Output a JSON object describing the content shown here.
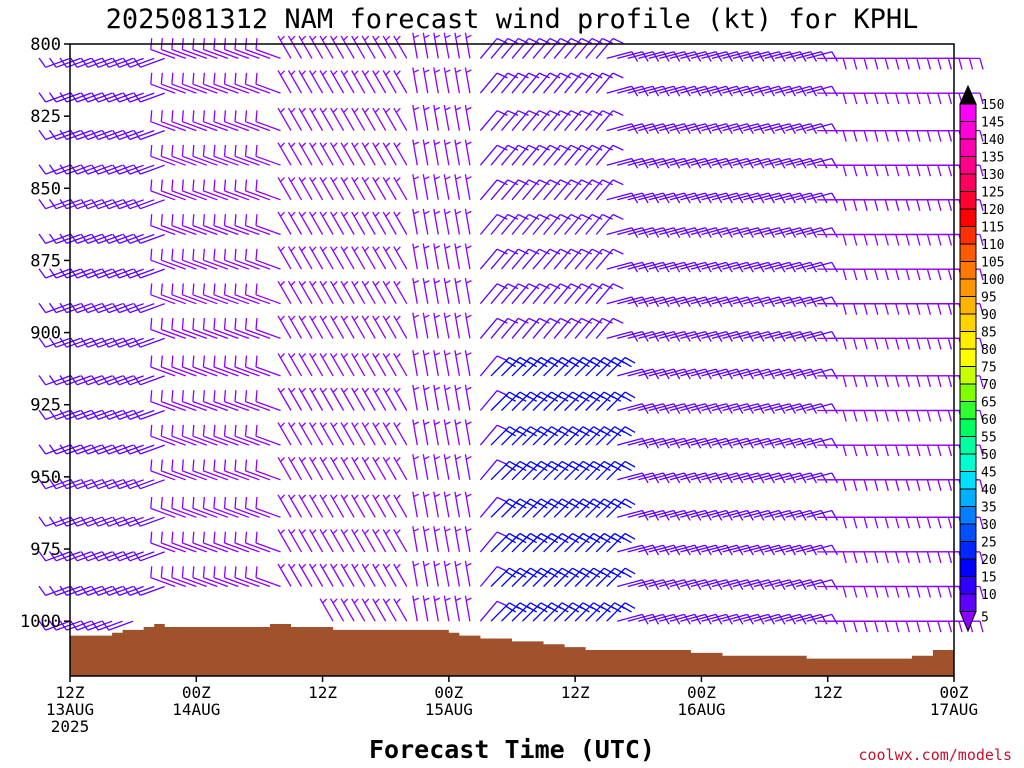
{
  "chart_data": {
    "type": "wind-barb-profile",
    "title": "2025081312 NAM forecast wind profile (kt) for KPHL",
    "xlabel": "Forecast Time (UTC)",
    "ylabel": "",
    "y_axis": {
      "reversed": true,
      "ylim": [
        800,
        1019
      ],
      "ticks": [
        "800",
        "825",
        "850",
        "875",
        "900",
        "925",
        "950",
        "975",
        "1000"
      ]
    },
    "x_axis": {
      "xlim_hours": [
        0,
        84
      ],
      "ticks": [
        {
          "hour": 0,
          "line1": "12Z",
          "line2": "13AUG",
          "line3": "2025"
        },
        {
          "hour": 12,
          "line1": "00Z",
          "line2": "14AUG",
          "line3": ""
        },
        {
          "hour": 24,
          "line1": "12Z",
          "line2": "",
          "line3": ""
        },
        {
          "hour": 36,
          "line1": "00Z",
          "line2": "15AUG",
          "line3": ""
        },
        {
          "hour": 48,
          "line1": "12Z",
          "line2": "",
          "line3": ""
        },
        {
          "hour": 60,
          "line1": "00Z",
          "line2": "16AUG",
          "line3": ""
        },
        {
          "hour": 72,
          "line1": "12Z",
          "line2": "",
          "line3": ""
        },
        {
          "hour": 84,
          "line1": "00Z",
          "line2": "17AUG",
          "line3": ""
        }
      ]
    },
    "surface_pressure": [
      {
        "hour": 0,
        "p": 1005
      },
      {
        "hour": 2,
        "p": 1005
      },
      {
        "hour": 4,
        "p": 1004
      },
      {
        "hour": 5,
        "p": 1003
      },
      {
        "hour": 7,
        "p": 1002
      },
      {
        "hour": 8,
        "p": 1001
      },
      {
        "hour": 9,
        "p": 1002
      },
      {
        "hour": 15,
        "p": 1002
      },
      {
        "hour": 19,
        "p": 1001
      },
      {
        "hour": 21,
        "p": 1002
      },
      {
        "hour": 25,
        "p": 1003
      },
      {
        "hour": 34,
        "p": 1003
      },
      {
        "hour": 36,
        "p": 1004
      },
      {
        "hour": 37,
        "p": 1005
      },
      {
        "hour": 39,
        "p": 1006
      },
      {
        "hour": 42,
        "p": 1007
      },
      {
        "hour": 45,
        "p": 1008
      },
      {
        "hour": 47,
        "p": 1009
      },
      {
        "hour": 49,
        "p": 1010
      },
      {
        "hour": 56,
        "p": 1010
      },
      {
        "hour": 59,
        "p": 1011
      },
      {
        "hour": 62,
        "p": 1012
      },
      {
        "hour": 68,
        "p": 1012
      },
      {
        "hour": 70,
        "p": 1013
      },
      {
        "hour": 78,
        "p": 1013
      },
      {
        "hour": 80,
        "p": 1012
      },
      {
        "hour": 82,
        "p": 1010
      },
      {
        "hour": 84,
        "p": 1009
      }
    ],
    "surface_color": "#a0522d",
    "wind_field": {
      "time_step_hours": 1,
      "pressure_levels": [
        805,
        817,
        830,
        842,
        854,
        866,
        878,
        890,
        902,
        915,
        927,
        939,
        951,
        964,
        976,
        988,
        1000,
        1012
      ],
      "regimes": [
        {
          "hours": [
            0,
            9
          ],
          "direction_deg": 250,
          "speed_kt": 10
        },
        {
          "hours": [
            10,
            20
          ],
          "direction_deg": 290,
          "speed_kt": 8
        },
        {
          "hours": [
            21,
            32
          ],
          "direction_deg": 330,
          "speed_kt": 7
        },
        {
          "hours": [
            33,
            38
          ],
          "direction_deg": 350,
          "speed_kt": 6
        },
        {
          "hours": [
            39,
            50
          ],
          "direction_deg": 40,
          "speed_kt": 12
        },
        {
          "hours": [
            51,
            70
          ],
          "direction_deg": 75,
          "speed_kt": 12
        },
        {
          "hours": [
            71,
            84
          ],
          "direction_deg": 90,
          "speed_kt": 9
        }
      ],
      "low_level_jet": {
        "hours": [
          40,
          51
        ],
        "pressure_range": [
          915,
          1000
        ],
        "direction_deg": 45,
        "speed_kt": 22
      }
    },
    "colorbar": {
      "labels": [
        "150",
        "145",
        "140",
        "135",
        "130",
        "125",
        "120",
        "115",
        "110",
        "105",
        "100",
        "95",
        "90",
        "85",
        "80",
        "75",
        "70",
        "65",
        "60",
        "55",
        "50",
        "45",
        "40",
        "35",
        "30",
        "25",
        "20",
        "15",
        "10",
        "5"
      ],
      "colors": [
        "#ff00ff",
        "#ff00d8",
        "#ff00b0",
        "#ff0088",
        "#ff0060",
        "#ff0030",
        "#ff0000",
        "#ff3000",
        "#ff5a00",
        "#ff7800",
        "#ff9600",
        "#ffb400",
        "#ffd200",
        "#ffee00",
        "#ffff00",
        "#c8ff00",
        "#80ff00",
        "#30ff30",
        "#00ff60",
        "#00ffa0",
        "#00ffd0",
        "#00e0ff",
        "#00b0ff",
        "#0080ff",
        "#0050ff",
        "#0028ff",
        "#0000ff",
        "#3000ff",
        "#6000ff",
        "#8c00ff"
      ]
    },
    "grid": false,
    "legend": "right"
  },
  "credit": "coolwx.com/models"
}
